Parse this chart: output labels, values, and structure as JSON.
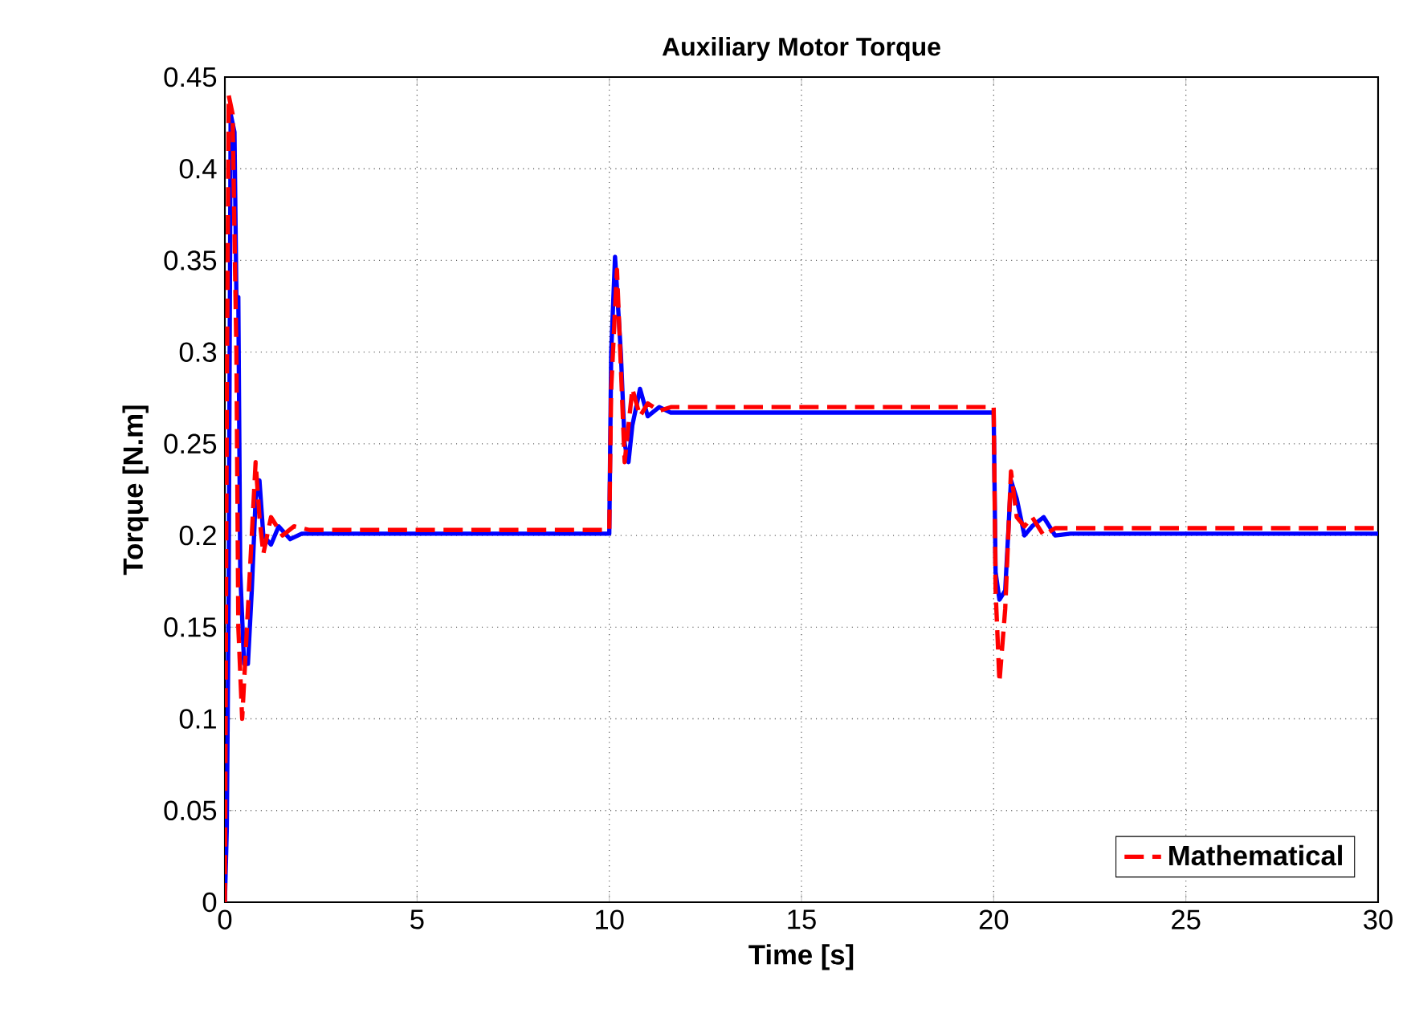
{
  "chart_data": {
    "type": "line",
    "title": "Auxiliary Motor Torque",
    "xlabel": "Time [s]",
    "ylabel": "Torque [N.m]",
    "xlim": [
      0,
      30
    ],
    "ylim": [
      0,
      0.45
    ],
    "xticks": [
      0,
      5,
      10,
      15,
      20,
      25,
      30
    ],
    "yticks": [
      0,
      0.05,
      0.1,
      0.15,
      0.2,
      0.25,
      0.3,
      0.35,
      0.4,
      0.45
    ],
    "grid": true,
    "legend": "bottom right",
    "marker": "none",
    "series": [
      {
        "color": "#0000ff",
        "line_style": "solid",
        "x": [
          0,
          0.05,
          0.1,
          0.15,
          0.25,
          0.3,
          0.35,
          0.4,
          0.5,
          0.6,
          0.7,
          0.8,
          0.9,
          1.0,
          1.2,
          1.4,
          1.7,
          2,
          10,
          10.05,
          10.15,
          10.3,
          10.4,
          10.5,
          10.6,
          10.8,
          11.0,
          11.3,
          11.6,
          20,
          20.05,
          20.15,
          20.3,
          20.45,
          20.6,
          20.8,
          21.0,
          21.3,
          21.6,
          22,
          30
        ],
        "values": [
          0,
          0.04,
          0.17,
          0.43,
          0.42,
          0.33,
          0.33,
          0.18,
          0.13,
          0.13,
          0.17,
          0.22,
          0.23,
          0.2,
          0.195,
          0.205,
          0.198,
          0.201,
          0.201,
          0.3,
          0.352,
          0.3,
          0.25,
          0.24,
          0.26,
          0.28,
          0.265,
          0.27,
          0.267,
          0.267,
          0.18,
          0.165,
          0.17,
          0.23,
          0.22,
          0.2,
          0.205,
          0.21,
          0.2,
          0.201,
          0.201
        ]
      },
      {
        "name": "Mathematical",
        "color": "#ff0000",
        "line_style": "dashed",
        "x": [
          0,
          0.05,
          0.1,
          0.2,
          0.3,
          0.35,
          0.45,
          0.55,
          0.65,
          0.8,
          0.9,
          1.0,
          1.2,
          1.5,
          1.8,
          2.2,
          10,
          10.05,
          10.2,
          10.4,
          10.6,
          10.8,
          11.0,
          11.3,
          11.6,
          20,
          20.05,
          20.15,
          20.3,
          20.45,
          20.6,
          20.8,
          21.0,
          21.3,
          21.6,
          30
        ],
        "values": [
          0,
          0.27,
          0.44,
          0.43,
          0.3,
          0.15,
          0.1,
          0.14,
          0.18,
          0.24,
          0.21,
          0.19,
          0.21,
          0.2,
          0.205,
          0.203,
          0.203,
          0.28,
          0.345,
          0.24,
          0.28,
          0.265,
          0.272,
          0.268,
          0.27,
          0.27,
          0.17,
          0.12,
          0.16,
          0.235,
          0.21,
          0.205,
          0.21,
          0.2,
          0.204,
          0.204
        ]
      }
    ]
  }
}
